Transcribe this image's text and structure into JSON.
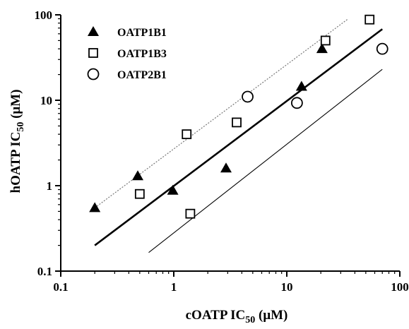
{
  "chart_data": {
    "type": "scatter",
    "title": "",
    "xlabel": {
      "main": "cOATP  IC",
      "sub": "50",
      "unit": " (μM)"
    },
    "ylabel": {
      "main": "hOATP  IC",
      "sub": "50",
      "unit": " (μM)"
    },
    "xscale": "log",
    "yscale": "log",
    "xlim": [
      0.1,
      100
    ],
    "ylim": [
      0.1,
      100
    ],
    "xticks": [
      0.1,
      1,
      10,
      100
    ],
    "yticks": [
      0.1,
      1,
      10,
      100
    ],
    "xtick_labels": [
      "0.1",
      "1",
      "10",
      "100"
    ],
    "ytick_labels": [
      "0.1",
      "1",
      "10",
      "100"
    ],
    "grid": false,
    "legend_position": "top-left",
    "series": [
      {
        "name": "OATP1B1",
        "marker": "filled-triangle",
        "color": "#000000",
        "points": [
          {
            "x": 0.2,
            "y": 0.55
          },
          {
            "x": 0.48,
            "y": 1.3
          },
          {
            "x": 0.98,
            "y": 0.88
          },
          {
            "x": 2.9,
            "y": 1.6
          },
          {
            "x": 13.5,
            "y": 14.5
          },
          {
            "x": 20.5,
            "y": 40
          }
        ]
      },
      {
        "name": "OATP1B3",
        "marker": "open-square",
        "color": "#000000",
        "points": [
          {
            "x": 0.5,
            "y": 0.8
          },
          {
            "x": 1.3,
            "y": 4.0
          },
          {
            "x": 1.4,
            "y": 0.47
          },
          {
            "x": 3.6,
            "y": 5.5
          },
          {
            "x": 22,
            "y": 50
          },
          {
            "x": 54,
            "y": 88
          }
        ]
      },
      {
        "name": "OATP2B1",
        "marker": "open-circle",
        "color": "#000000",
        "points": [
          {
            "x": 4.5,
            "y": 11
          },
          {
            "x": 12.3,
            "y": 9.3
          },
          {
            "x": 70,
            "y": 40
          }
        ]
      }
    ],
    "lines": [
      {
        "role": "regression",
        "style": "solid-thick",
        "color": "#000000",
        "x": [
          0.2,
          70
        ],
        "y": [
          0.2,
          68
        ]
      },
      {
        "role": "upper-bound",
        "style": "dotted",
        "color": "#777777",
        "x": [
          0.2,
          35
        ],
        "y": [
          0.55,
          90
        ]
      },
      {
        "role": "lower-bound",
        "style": "solid-thin",
        "color": "#000000",
        "x": [
          0.6,
          70
        ],
        "y": [
          0.165,
          23
        ]
      }
    ]
  }
}
